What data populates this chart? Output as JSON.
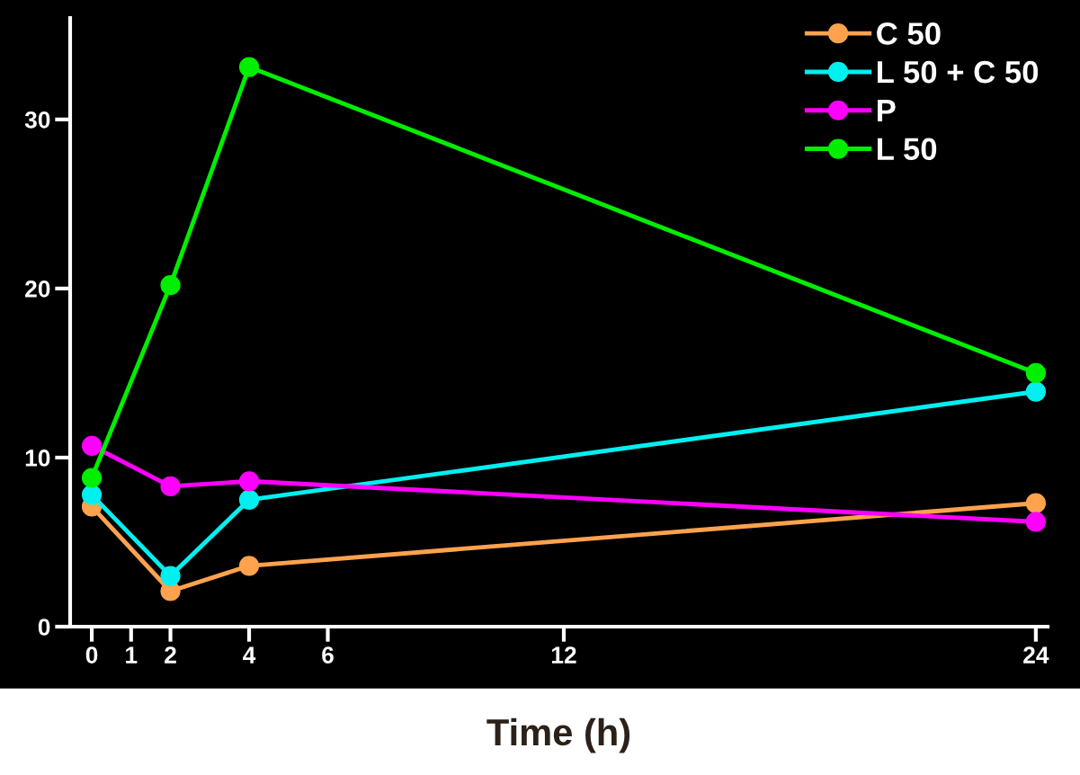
{
  "chart_data": {
    "type": "line",
    "xlabel": "Time (h)",
    "x": [
      0,
      2,
      4,
      24
    ],
    "series": [
      {
        "name": "C 50",
        "color": "#ffa24d",
        "values": [
          7.1,
          2.1,
          3.6,
          7.3
        ]
      },
      {
        "name": "L 50 + C 50",
        "color": "#00f0f0",
        "values": [
          7.8,
          3.0,
          7.5,
          13.9
        ]
      },
      {
        "name": "P",
        "color": "#ff00ff",
        "values": [
          10.7,
          8.3,
          8.6,
          6.2
        ]
      },
      {
        "name": "L 50",
        "color": "#00ee00",
        "values": [
          8.8,
          20.2,
          33.1,
          15.0
        ]
      }
    ],
    "xlim": [
      -0.55,
      24.3
    ],
    "xticks": [
      0,
      1,
      2,
      4,
      6,
      12,
      24
    ],
    "ylim": [
      0,
      36
    ],
    "yticks": [
      0,
      10,
      20,
      30
    ],
    "legend": "top right",
    "marker": "circle",
    "line_style": "solid",
    "grid": false
  }
}
